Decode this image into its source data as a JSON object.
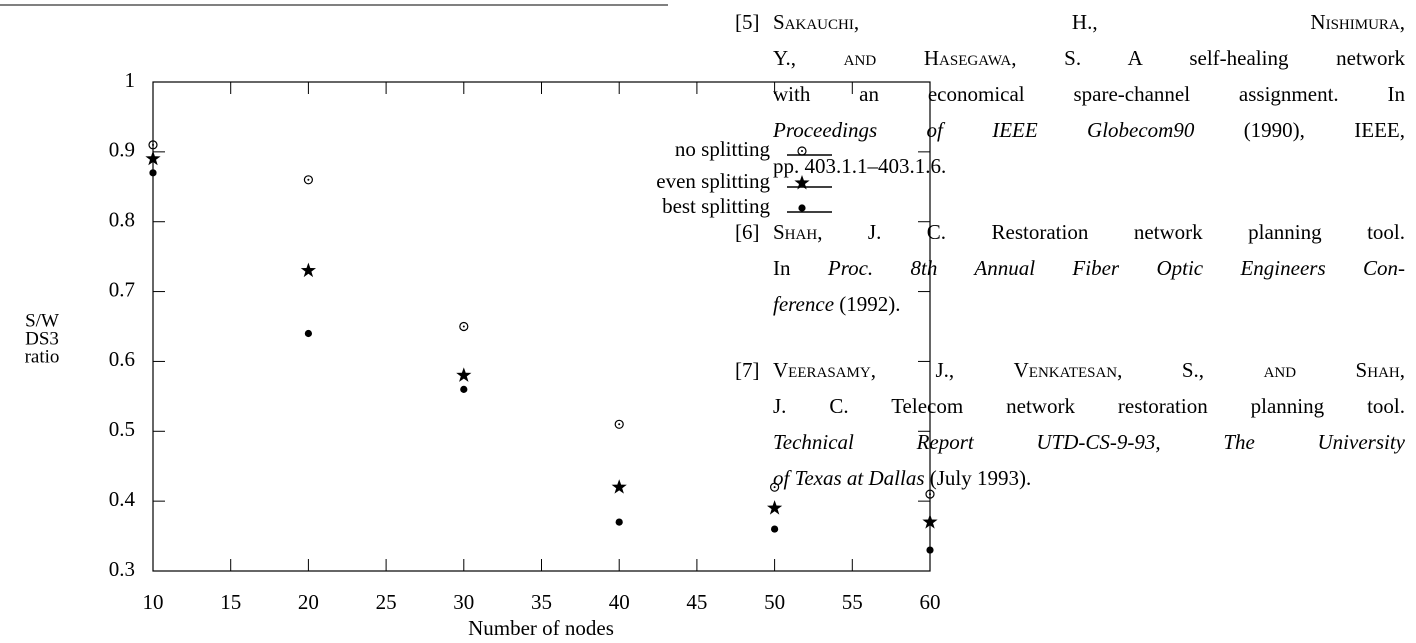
{
  "chart_data": {
    "type": "scatter",
    "xlabel": "Number of nodes",
    "ylabel": [
      "S/W",
      "DS3",
      "ratio"
    ],
    "x": [
      10,
      20,
      30,
      40,
      50,
      60
    ],
    "series": [
      {
        "name": "no splitting",
        "marker": "dotcircle",
        "color": "#000000",
        "values": [
          0.91,
          0.86,
          0.65,
          0.51,
          0.42,
          0.41
        ]
      },
      {
        "name": "even splitting",
        "marker": "star",
        "color": "#000000",
        "values": [
          0.89,
          0.73,
          0.58,
          0.42,
          0.39,
          0.37
        ]
      },
      {
        "name": "best splitting",
        "marker": "dot",
        "color": "#000000",
        "values": [
          0.87,
          0.64,
          0.56,
          0.37,
          0.36,
          0.33
        ]
      }
    ],
    "xlim": [
      10,
      60
    ],
    "xticks": [
      10,
      15,
      20,
      25,
      30,
      35,
      40,
      45,
      50,
      55,
      60
    ],
    "ylim": [
      0.3,
      1
    ],
    "yticks": [
      0.3,
      0.4,
      0.5,
      0.6,
      0.7,
      0.8,
      0.9,
      1
    ],
    "legend": "upper right"
  },
  "references": [
    {
      "label": "[5]",
      "lines": [
        [
          {
            "text": "Sakauchi",
            "style": "sc"
          },
          ", H., ",
          {
            "text": "Nishimura",
            "style": "sc"
          },
          ","
        ],
        [
          "Y., ",
          {
            "text": "and Hasegawa",
            "style": "sc"
          },
          ", S. A self-healing network"
        ],
        [
          "with an economical spare-channel assignment. In"
        ],
        [
          {
            "text": "Proceedings of IEEE Globecom90",
            "style": "it"
          },
          " (1990), IEEE,"
        ],
        [
          "pp. 403.1.1–403.1.6."
        ]
      ]
    },
    {
      "label": "[6]",
      "lines": [
        [
          {
            "text": "Shah",
            "style": "sc"
          },
          ", J. C. Restoration network planning tool."
        ],
        [
          "In ",
          {
            "text": "Proc. 8th Annual Fiber Optic Engineers Con-",
            "style": "it"
          }
        ],
        [
          {
            "text": "ference",
            "style": "it"
          },
          " (1992)."
        ]
      ]
    },
    {
      "label": "[7]",
      "lines": [
        [
          {
            "text": "Veerasamy",
            "style": "sc"
          },
          ", J., ",
          {
            "text": "Venkatesan",
            "style": "sc"
          },
          ", S., ",
          {
            "text": "and Shah",
            "style": "sc"
          },
          ","
        ],
        [
          "J. C. Telecom network restoration planning tool."
        ],
        [
          {
            "text": "Technical Report UTD-CS-9-93, The University",
            "style": "it"
          }
        ],
        [
          {
            "text": "of Texas at Dallas",
            "style": "it"
          },
          " (July 1993)."
        ]
      ]
    }
  ]
}
